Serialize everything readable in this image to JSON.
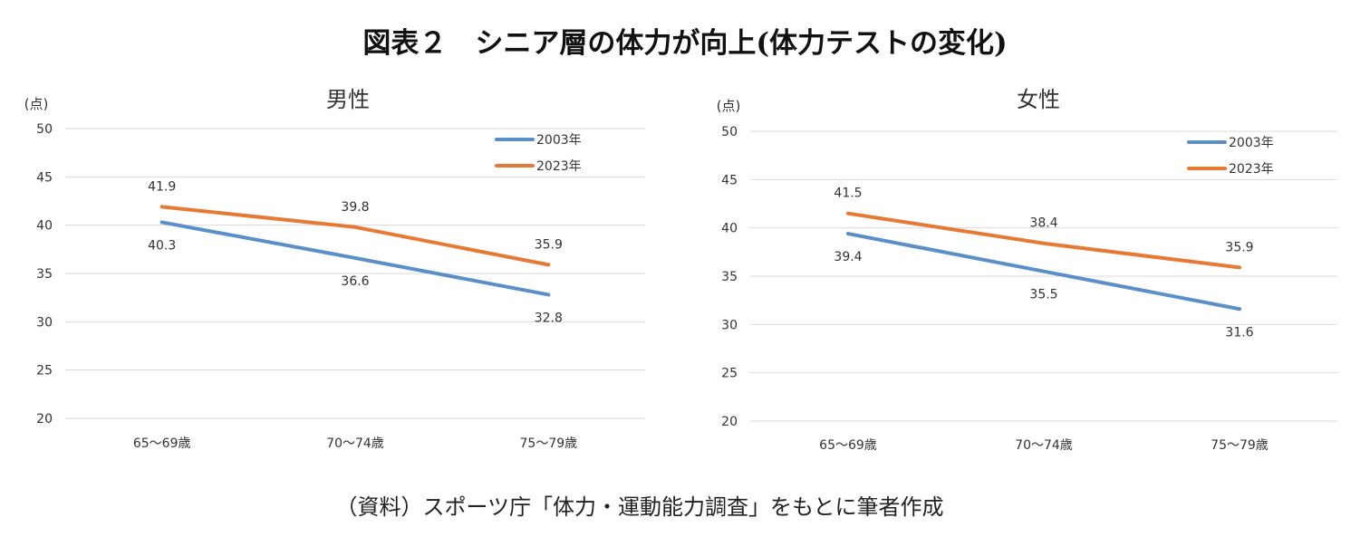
{
  "title": "図表２　シニア層の体力が向上(体力テストの変化)",
  "source": "（資料）スポーツ庁「体力・運動能力調査」をもとに筆者作成",
  "colors": {
    "series_2003": "#5b8fc7",
    "series_2023": "#e67a35",
    "grid": "#d9d9d9",
    "text": "#333333"
  },
  "chart_data": [
    {
      "type": "line",
      "title": "男性",
      "ylabel": "(点)",
      "categories": [
        "65～69歳",
        "70～74歳",
        "75～79歳"
      ],
      "ylim": [
        20,
        50
      ],
      "yticks": [
        20,
        25,
        30,
        35,
        40,
        45,
        50
      ],
      "legend_position": "top-right",
      "series": [
        {
          "name": "2003年",
          "values": [
            40.3,
            36.6,
            32.8
          ],
          "labels": [
            "40.3",
            "36.6",
            "32.8"
          ],
          "label_side": "below"
        },
        {
          "name": "2023年",
          "values": [
            41.9,
            39.8,
            35.9
          ],
          "labels": [
            "41.9",
            "39.8",
            "35.9"
          ],
          "label_side": "above"
        }
      ]
    },
    {
      "type": "line",
      "title": "女性",
      "ylabel": "(点)",
      "categories": [
        "65～69歳",
        "70～74歳",
        "75～79歳"
      ],
      "ylim": [
        20,
        50
      ],
      "yticks": [
        20,
        25,
        30,
        35,
        40,
        45,
        50
      ],
      "legend_position": "top-right",
      "series": [
        {
          "name": "2003年",
          "values": [
            39.4,
            35.5,
            31.6
          ],
          "labels": [
            "39.4",
            "35.5",
            "31.6"
          ],
          "label_side": "below"
        },
        {
          "name": "2023年",
          "values": [
            41.5,
            38.4,
            35.9
          ],
          "labels": [
            "41.5",
            "38.4",
            "35.9"
          ],
          "label_side": "above"
        }
      ]
    }
  ]
}
